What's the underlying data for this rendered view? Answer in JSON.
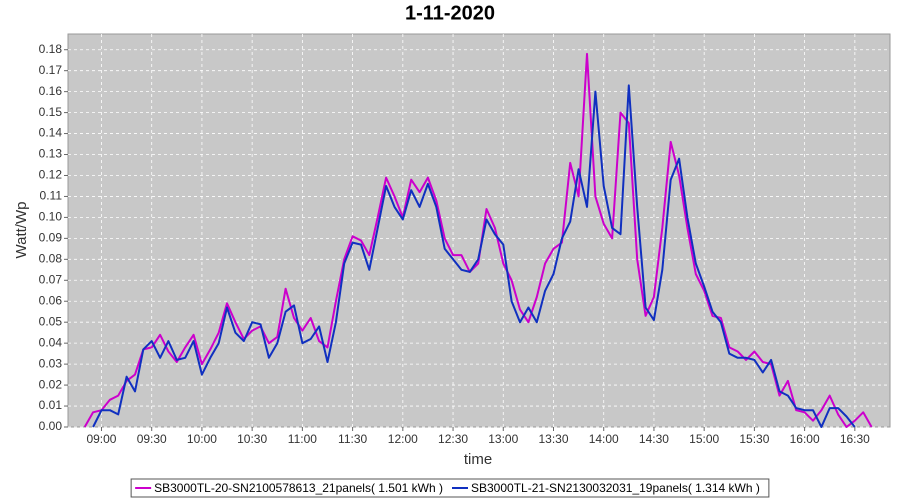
{
  "chart_data": {
    "type": "line",
    "title": "1-11-2020",
    "x_label": "time",
    "y_label": "Watt/Wp",
    "grid": true,
    "legend": "bottom",
    "xlim": [
      520,
      1011
    ],
    "ylim": [
      0,
      0.1875
    ],
    "xticks": [
      {
        "value": 540,
        "label": "09:00"
      },
      {
        "value": 570,
        "label": "09:30"
      },
      {
        "value": 600,
        "label": "10:00"
      },
      {
        "value": 630,
        "label": "10:30"
      },
      {
        "value": 660,
        "label": "11:00"
      },
      {
        "value": 690,
        "label": "11:30"
      },
      {
        "value": 720,
        "label": "12:00"
      },
      {
        "value": 750,
        "label": "12:30"
      },
      {
        "value": 780,
        "label": "13:00"
      },
      {
        "value": 810,
        "label": "13:30"
      },
      {
        "value": 840,
        "label": "14:00"
      },
      {
        "value": 870,
        "label": "14:30"
      },
      {
        "value": 900,
        "label": "15:00"
      },
      {
        "value": 930,
        "label": "15:30"
      },
      {
        "value": 960,
        "label": "16:00"
      },
      {
        "value": 990,
        "label": "16:30"
      }
    ],
    "yticks": [
      {
        "value": 0,
        "label": "0.00"
      },
      0.01,
      0.02,
      0.03,
      0.04,
      0.05,
      0.06,
      0.07,
      0.08,
      0.09,
      {
        "value": 0.1,
        "label": "0.10"
      },
      0.11,
      0.12,
      0.13,
      0.14,
      0.15,
      0.16,
      0.17,
      0.18
    ],
    "x": [
      530,
      535,
      540,
      545,
      550,
      555,
      560,
      565,
      570,
      575,
      580,
      585,
      590,
      595,
      600,
      605,
      610,
      615,
      620,
      625,
      630,
      635,
      640,
      645,
      650,
      655,
      660,
      665,
      670,
      675,
      680,
      685,
      690,
      695,
      700,
      705,
      710,
      715,
      720,
      725,
      730,
      735,
      740,
      745,
      750,
      755,
      760,
      765,
      770,
      775,
      780,
      785,
      790,
      795,
      800,
      805,
      810,
      815,
      820,
      825,
      830,
      835,
      840,
      845,
      850,
      855,
      860,
      865,
      870,
      875,
      880,
      885,
      890,
      895,
      900,
      905,
      910,
      915,
      920,
      925,
      930,
      935,
      940,
      945,
      950,
      955,
      960,
      965,
      970,
      975,
      980,
      985,
      990,
      995,
      1000
    ],
    "series": [
      {
        "name": "SB3000TL-20-SN2100578613_21panels( 1.501 kWh )",
        "color": "#cc00cc",
        "values": [
          0.0,
          0.007,
          0.008,
          0.013,
          0.015,
          0.022,
          0.025,
          0.037,
          0.038,
          0.044,
          0.036,
          0.031,
          0.038,
          0.044,
          0.03,
          0.037,
          0.045,
          0.059,
          0.05,
          0.042,
          0.046,
          0.048,
          0.04,
          0.043,
          0.066,
          0.052,
          0.046,
          0.052,
          0.041,
          0.038,
          0.06,
          0.08,
          0.091,
          0.089,
          0.082,
          0.1,
          0.119,
          0.11,
          0.1,
          0.118,
          0.112,
          0.119,
          0.108,
          0.09,
          0.082,
          0.082,
          0.074,
          0.078,
          0.104,
          0.095,
          0.078,
          0.07,
          0.056,
          0.05,
          0.062,
          0.078,
          0.085,
          0.088,
          0.126,
          0.11,
          0.178,
          0.11,
          0.097,
          0.09,
          0.15,
          0.145,
          0.08,
          0.053,
          0.062,
          0.095,
          0.136,
          0.12,
          0.095,
          0.073,
          0.065,
          0.053,
          0.052,
          0.038,
          0.036,
          0.032,
          0.036,
          0.031,
          0.03,
          0.015,
          0.022,
          0.008,
          0.007,
          0.003,
          0.008,
          0.015,
          0.006,
          0.0,
          0.003,
          0.007,
          0.0
        ]
      },
      {
        "name": "SB3000TL-21-SN2130032031_19panels( 1.314 kWh )",
        "color": "#1030c0",
        "values": [
          null,
          0.0,
          0.008,
          0.008,
          0.006,
          0.024,
          0.017,
          0.037,
          0.041,
          0.033,
          0.041,
          0.032,
          0.033,
          0.041,
          0.025,
          0.033,
          0.04,
          0.057,
          0.045,
          0.041,
          0.05,
          0.049,
          0.033,
          0.04,
          0.055,
          0.058,
          0.04,
          0.042,
          0.048,
          0.031,
          0.05,
          0.078,
          0.088,
          0.087,
          0.075,
          0.095,
          0.115,
          0.105,
          0.099,
          0.113,
          0.105,
          0.116,
          0.105,
          0.085,
          0.08,
          0.075,
          0.074,
          0.08,
          0.099,
          0.092,
          0.087,
          0.06,
          0.05,
          0.057,
          0.05,
          0.065,
          0.073,
          0.09,
          0.098,
          0.123,
          0.105,
          0.16,
          0.115,
          0.095,
          0.092,
          0.163,
          0.105,
          0.057,
          0.051,
          0.075,
          0.118,
          0.128,
          0.1,
          0.078,
          0.067,
          0.055,
          0.05,
          0.035,
          0.033,
          0.033,
          0.032,
          0.026,
          0.032,
          0.017,
          0.015,
          0.009,
          0.008,
          0.008,
          0.0,
          0.009,
          0.009,
          0.005,
          0.0,
          null,
          null
        ]
      }
    ]
  }
}
